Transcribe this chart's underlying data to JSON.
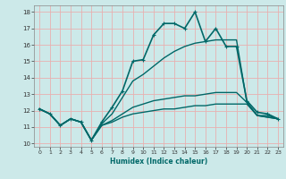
{
  "xlabel": "Humidex (Indice chaleur)",
  "ylabel": "",
  "xlim": [
    -0.5,
    23.5
  ],
  "ylim": [
    9.8,
    18.4
  ],
  "yticks": [
    10,
    11,
    12,
    13,
    14,
    15,
    16,
    17,
    18
  ],
  "xticks": [
    0,
    1,
    2,
    3,
    4,
    5,
    6,
    7,
    8,
    9,
    10,
    11,
    12,
    13,
    14,
    15,
    16,
    17,
    18,
    19,
    20,
    21,
    22,
    23
  ],
  "background_color": "#cce9e9",
  "grid_color": "#e8b0b0",
  "line_color": "#006868",
  "lines": [
    {
      "x": [
        0,
        1,
        2,
        3,
        4,
        5,
        6,
        7,
        8,
        9,
        10,
        11,
        12,
        13,
        14,
        15,
        16,
        17,
        18,
        19,
        20,
        21,
        22,
        23
      ],
      "y": [
        12.1,
        11.8,
        11.1,
        11.5,
        11.3,
        10.2,
        11.3,
        12.2,
        13.2,
        15.0,
        15.1,
        16.6,
        17.3,
        17.3,
        17.0,
        18.0,
        16.2,
        17.0,
        15.9,
        15.9,
        12.6,
        11.9,
        11.8,
        11.5
      ],
      "marker": true,
      "linewidth": 1.2
    },
    {
      "x": [
        0,
        1,
        2,
        3,
        4,
        5,
        6,
        7,
        8,
        9,
        10,
        11,
        12,
        13,
        14,
        15,
        16,
        17,
        18,
        19,
        20,
        21,
        22,
        23
      ],
      "y": [
        12.1,
        11.8,
        11.1,
        11.5,
        11.3,
        10.2,
        11.2,
        11.8,
        12.8,
        13.8,
        14.2,
        14.7,
        15.2,
        15.6,
        15.9,
        16.1,
        16.2,
        16.3,
        16.3,
        16.3,
        12.5,
        11.7,
        11.7,
        11.5
      ],
      "marker": false,
      "linewidth": 1.0
    },
    {
      "x": [
        0,
        1,
        2,
        3,
        4,
        5,
        6,
        7,
        8,
        9,
        10,
        11,
        12,
        13,
        14,
        15,
        16,
        17,
        18,
        19,
        20,
        21,
        22,
        23
      ],
      "y": [
        12.1,
        11.8,
        11.1,
        11.5,
        11.3,
        10.2,
        11.1,
        11.4,
        11.8,
        12.2,
        12.4,
        12.6,
        12.7,
        12.8,
        12.9,
        12.9,
        13.0,
        13.1,
        13.1,
        13.1,
        12.5,
        11.7,
        11.6,
        11.5
      ],
      "marker": false,
      "linewidth": 1.0
    },
    {
      "x": [
        0,
        1,
        2,
        3,
        4,
        5,
        6,
        7,
        8,
        9,
        10,
        11,
        12,
        13,
        14,
        15,
        16,
        17,
        18,
        19,
        20,
        21,
        22,
        23
      ],
      "y": [
        12.1,
        11.8,
        11.1,
        11.5,
        11.3,
        10.2,
        11.1,
        11.3,
        11.6,
        11.8,
        11.9,
        12.0,
        12.1,
        12.1,
        12.2,
        12.3,
        12.3,
        12.4,
        12.4,
        12.4,
        12.4,
        11.7,
        11.6,
        11.5
      ],
      "marker": false,
      "linewidth": 1.0
    }
  ]
}
